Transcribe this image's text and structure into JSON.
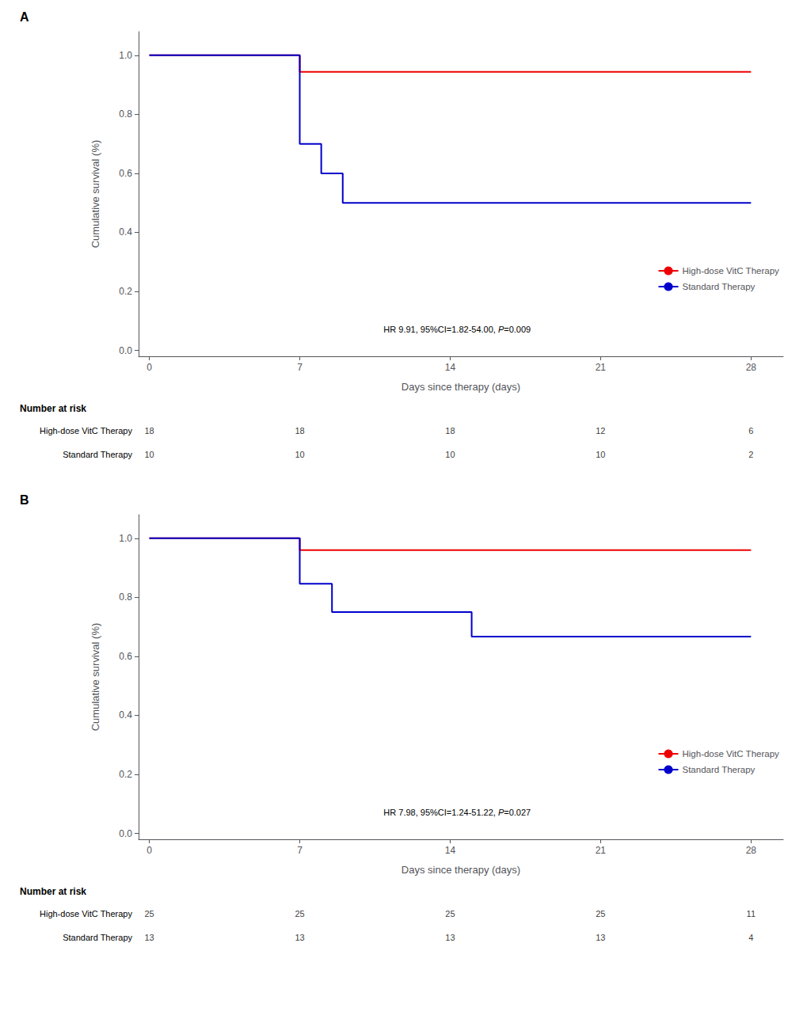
{
  "chart_data": [
    {
      "type": "step",
      "title": "A",
      "xlabel": "Days since therapy (days)",
      "ylabel": "Cumulative survival (%)",
      "xlim": [
        -0.5,
        29.5
      ],
      "ylim": [
        -0.02,
        1.08
      ],
      "xticks": [
        0,
        7,
        14,
        21,
        28
      ],
      "yticks": [
        {
          "value": 0.0,
          "label": "0.0"
        },
        0.2,
        0.4,
        0.6,
        0.8,
        {
          "value": 1.0,
          "label": "1.0"
        }
      ],
      "grid": false,
      "legend": "lower right",
      "series": [
        {
          "name": "High-dose VitC Therapy",
          "color": "#EE0000",
          "x": [
            0,
            7,
            7,
            28
          ],
          "values": [
            1.0,
            1.0,
            0.944,
            0.944
          ]
        },
        {
          "name": "Standard Therapy",
          "color": "#0000CC",
          "x": [
            0,
            7,
            7,
            8,
            8,
            9,
            9,
            15,
            15,
            28
          ],
          "values": [
            1.0,
            1.0,
            0.7,
            0.7,
            0.6,
            0.6,
            0.5,
            0.5,
            0.5,
            0.5
          ]
        }
      ],
      "annotation": [
        "HR 9.91, 95%CI=1.82-54.00, ",
        "P",
        "=0.009"
      ],
      "risk_table": {
        "title": "Number at risk",
        "x": [
          0,
          7,
          14,
          21,
          28
        ],
        "rows": [
          {
            "name": "High-dose VitC Therapy",
            "values": [
              18,
              18,
              18,
              12,
              6
            ]
          },
          {
            "name": "Standard Therapy",
            "values": [
              10,
              10,
              10,
              10,
              2
            ]
          }
        ]
      }
    },
    {
      "type": "step",
      "title": "B",
      "xlabel": "Days since therapy (days)",
      "ylabel": "Cumulative survival (%)",
      "xlim": [
        -0.5,
        29.5
      ],
      "ylim": [
        -0.02,
        1.08
      ],
      "xticks": [
        0,
        7,
        14,
        21,
        28
      ],
      "yticks": [
        {
          "value": 0.0,
          "label": "0.0"
        },
        0.2,
        0.4,
        0.6,
        0.8,
        {
          "value": 1.0,
          "label": "1.0"
        }
      ],
      "grid": false,
      "legend": "lower right",
      "series": [
        {
          "name": "High-dose VitC Therapy",
          "color": "#EE0000",
          "x": [
            0,
            7,
            7,
            28
          ],
          "values": [
            1.0,
            1.0,
            0.96,
            0.96
          ]
        },
        {
          "name": "Standard Therapy",
          "color": "#0000CC",
          "x": [
            0,
            7,
            7,
            8.5,
            8.5,
            15,
            15,
            28
          ],
          "values": [
            1.0,
            1.0,
            0.846,
            0.846,
            0.75,
            0.75,
            0.667,
            0.667
          ]
        }
      ],
      "annotation": [
        "HR 7.98, 95%CI=1.24-51.22, ",
        "P",
        "=0.027"
      ],
      "risk_table": {
        "title": "Number at risk",
        "x": [
          0,
          7,
          14,
          21,
          28
        ],
        "rows": [
          {
            "name": "High-dose VitC Therapy",
            "values": [
              25,
              25,
              25,
              25,
              11
            ]
          },
          {
            "name": "Standard Therapy",
            "values": [
              13,
              13,
              13,
              13,
              4
            ]
          }
        ]
      }
    }
  ]
}
